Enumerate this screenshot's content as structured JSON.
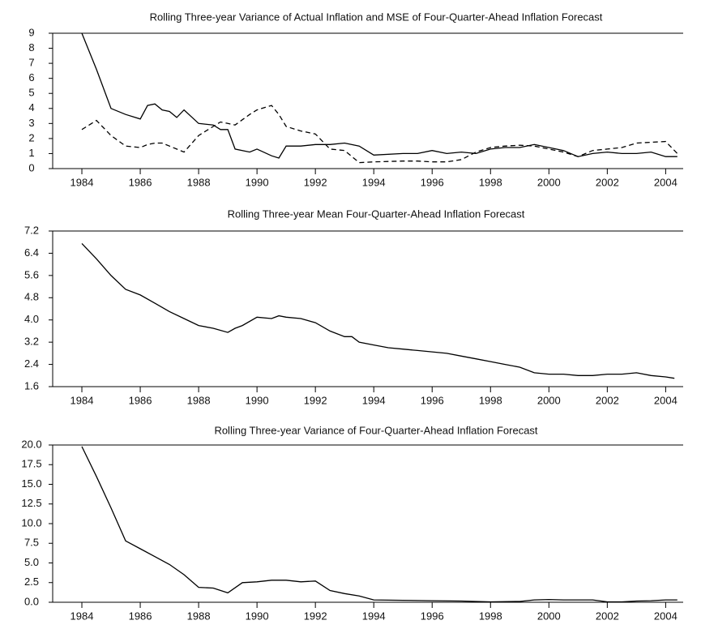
{
  "chart_data": [
    {
      "type": "line",
      "title": "Rolling Three-year Variance of Actual Inflation and MSE of Four-Quarter-Ahead Inflation Forecast",
      "x": [
        1984,
        1984.5,
        1985,
        1985.5,
        1986,
        1986.25,
        1986.5,
        1986.75,
        1987,
        1987.25,
        1987.5,
        1988,
        1988.5,
        1988.75,
        1989,
        1989.25,
        1989.75,
        1990,
        1990.5,
        1990.75,
        1991,
        1991.5,
        1992,
        1992.5,
        1993,
        1993.5,
        1994,
        1995,
        1995.5,
        1996,
        1996.5,
        1997,
        1997.5,
        1998,
        1998.5,
        1999,
        1999.5,
        2000,
        2000.5,
        2001,
        2001.5,
        2002,
        2002.5,
        2003,
        2003.5,
        2004,
        2004.4
      ],
      "series": [
        {
          "color": "#000000",
          "dash": "solid",
          "values": [
            9,
            6.6,
            4.0,
            3.6,
            3.3,
            4.2,
            4.3,
            3.9,
            3.8,
            3.4,
            3.9,
            3.0,
            2.9,
            2.6,
            2.6,
            1.3,
            1.1,
            1.3,
            0.85,
            0.7,
            1.5,
            1.5,
            1.6,
            1.6,
            1.7,
            1.5,
            0.9,
            1.0,
            1.0,
            1.2,
            1.0,
            1.1,
            1.0,
            1.3,
            1.4,
            1.4,
            1.6,
            1.4,
            1.2,
            0.8,
            1.0,
            1.1,
            1.0,
            1.0,
            1.1,
            0.8,
            0.8
          ]
        },
        {
          "color": "#000000",
          "dash": "dashed",
          "values": [
            2.6,
            3.2,
            2.2,
            1.5,
            1.4,
            1.6,
            1.7,
            1.7,
            1.5,
            1.3,
            1.1,
            2.2,
            2.8,
            3.1,
            3.0,
            2.9,
            3.6,
            3.9,
            4.2,
            3.6,
            2.8,
            2.5,
            2.3,
            1.3,
            1.2,
            0.4,
            0.45,
            0.5,
            0.5,
            0.45,
            0.45,
            0.6,
            1.1,
            1.4,
            1.5,
            1.55,
            1.5,
            1.3,
            1.1,
            0.8,
            1.2,
            1.3,
            1.4,
            1.7,
            1.75,
            1.8,
            1.0
          ]
        }
      ],
      "xlim": [
        1983.0,
        2004.6
      ],
      "xticks": [
        1984,
        1986,
        1988,
        1990,
        1992,
        1994,
        1996,
        1998,
        2000,
        2002,
        2004
      ],
      "ylim": [
        0,
        9
      ],
      "yticks": [
        0,
        1,
        2,
        3,
        4,
        5,
        6,
        7,
        8,
        9
      ]
    },
    {
      "type": "line",
      "title": "Rolling Three-year Mean Four-Quarter-Ahead Inflation Forecast",
      "x": [
        1984,
        1984.5,
        1985,
        1985.5,
        1986,
        1986.5,
        1987,
        1987.5,
        1988,
        1988.5,
        1989,
        1989.25,
        1989.5,
        1990,
        1990.5,
        1990.75,
        1991,
        1991.5,
        1992,
        1992.5,
        1993,
        1993.25,
        1993.5,
        1994,
        1994.5,
        1995,
        1995.5,
        1996,
        1996.5,
        1997,
        1997.5,
        1998,
        1998.5,
        1999,
        1999.5,
        2000,
        2000.5,
        2001,
        2001.5,
        2002,
        2002.5,
        2003,
        2003.5,
        2004,
        2004.3
      ],
      "series": [
        {
          "color": "#000000",
          "dash": "solid",
          "values": [
            6.75,
            6.2,
            5.6,
            5.1,
            4.9,
            4.6,
            4.3,
            4.05,
            3.8,
            3.7,
            3.55,
            3.7,
            3.8,
            4.1,
            4.05,
            4.15,
            4.1,
            4.05,
            3.9,
            3.6,
            3.4,
            3.4,
            3.2,
            3.1,
            3.0,
            2.95,
            2.9,
            2.85,
            2.8,
            2.7,
            2.6,
            2.5,
            2.4,
            2.3,
            2.1,
            2.05,
            2.05,
            2.0,
            2.0,
            2.05,
            2.05,
            2.1,
            2.0,
            1.95,
            1.9
          ]
        }
      ],
      "xlim": [
        1983.0,
        2004.6
      ],
      "xticks": [
        1984,
        1986,
        1988,
        1990,
        1992,
        1994,
        1996,
        1998,
        2000,
        2002,
        2004
      ],
      "ylim": [
        1.6,
        7.2
      ],
      "yticks": [
        1.6,
        2.4,
        3.2,
        {
          "value": 4,
          "label": "4.0"
        },
        4.8,
        5.6,
        6.4,
        7.2
      ]
    },
    {
      "type": "line",
      "title": "Rolling Three-year Variance of Four-Quarter-Ahead Inflation Forecast",
      "x": [
        1984,
        1984.5,
        1985,
        1985.5,
        1986,
        1986.5,
        1987,
        1987.5,
        1988,
        1988.5,
        1989,
        1989.5,
        1990,
        1990.5,
        1991,
        1991.5,
        1992,
        1992.5,
        1993,
        1993.5,
        1994,
        1995,
        1996,
        1997,
        1998,
        1999,
        1999.5,
        2000,
        2000.5,
        2001,
        2001.5,
        2002,
        2002.5,
        2003,
        2003.5,
        2004,
        2004.4
      ],
      "series": [
        {
          "color": "#000000",
          "dash": "solid",
          "values": [
            19.8,
            16,
            12,
            7.8,
            6.8,
            5.8,
            4.8,
            3.5,
            1.9,
            1.8,
            1.2,
            2.5,
            2.6,
            2.8,
            2.8,
            2.6,
            2.7,
            1.5,
            1.1,
            0.8,
            0.3,
            0.25,
            0.2,
            0.15,
            0.05,
            0.1,
            0.3,
            0.35,
            0.3,
            0.3,
            0.3,
            0.05,
            0.05,
            0.15,
            0.2,
            0.3,
            0.3
          ]
        }
      ],
      "xlim": [
        1983.0,
        2004.6
      ],
      "xticks": [
        1984,
        1986,
        1988,
        1990,
        1992,
        1994,
        1996,
        1998,
        2000,
        2002,
        2004
      ],
      "ylim": [
        0,
        20
      ],
      "yticks": [
        {
          "value": 0,
          "label": "0.0"
        },
        2.5,
        {
          "value": 5,
          "label": "5.0"
        },
        7.5,
        {
          "value": 10,
          "label": "10.0"
        },
        12.5,
        {
          "value": 15,
          "label": "15.0"
        },
        17.5,
        {
          "value": 20,
          "label": "20.0"
        }
      ]
    }
  ]
}
